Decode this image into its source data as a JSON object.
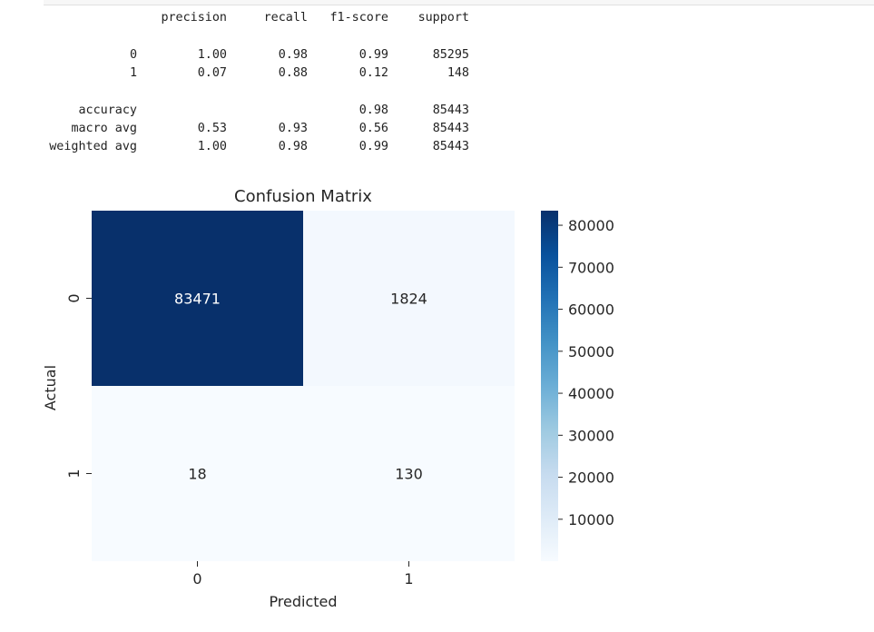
{
  "report": {
    "headers": [
      "precision",
      "recall",
      "f1-score",
      "support"
    ],
    "rows": [
      {
        "label": "0",
        "precision": "1.00",
        "recall": "0.98",
        "f1": "0.99",
        "support": "85295"
      },
      {
        "label": "1",
        "precision": "0.07",
        "recall": "0.88",
        "f1": "0.12",
        "support": "148"
      },
      {
        "label": "accuracy",
        "precision": "",
        "recall": "",
        "f1": "0.98",
        "support": "85443"
      },
      {
        "label": "macro avg",
        "precision": "0.53",
        "recall": "0.93",
        "f1": "0.56",
        "support": "85443"
      },
      {
        "label": "weighted avg",
        "precision": "1.00",
        "recall": "0.98",
        "f1": "0.99",
        "support": "85443"
      }
    ]
  },
  "chart_data": {
    "type": "heatmap",
    "title": "Confusion Matrix",
    "xlabel": "Predicted",
    "ylabel": "Actual",
    "x_categories": [
      "0",
      "1"
    ],
    "y_categories": [
      "0",
      "1"
    ],
    "values": [
      [
        83471,
        1824
      ],
      [
        18,
        130
      ]
    ],
    "colormap": "Blues",
    "colorbar": {
      "min": 18,
      "max": 83471,
      "ticks": [
        10000,
        20000,
        30000,
        40000,
        50000,
        60000,
        70000,
        80000
      ],
      "tick_labels": [
        "10000",
        "20000",
        "30000",
        "40000",
        "50000",
        "60000",
        "70000",
        "80000"
      ]
    }
  },
  "colors": {
    "dark_cell": "#08306b",
    "light_cell": "#f7fbff",
    "dark_text": "#ffffff",
    "light_text": "#262626"
  }
}
